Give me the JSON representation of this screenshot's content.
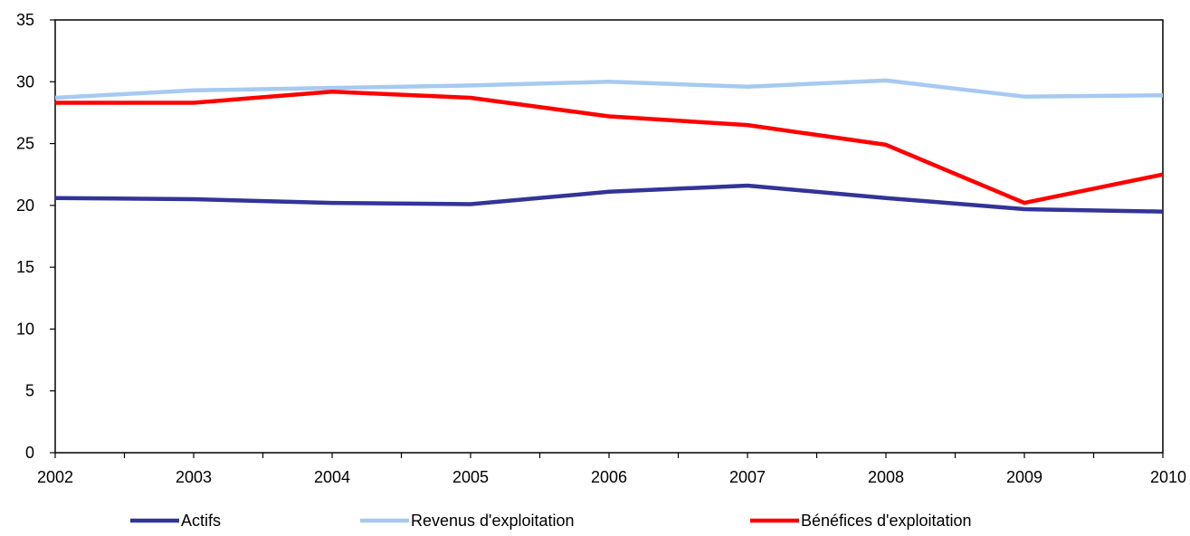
{
  "chart_data": {
    "type": "line",
    "x": [
      2002,
      2003,
      2004,
      2005,
      2006,
      2007,
      2008,
      2009,
      2010
    ],
    "x_tick_labels": [
      "2002",
      "2003",
      "2004",
      "2005",
      "2006",
      "2007",
      "2008",
      "2009",
      "2010"
    ],
    "y_tick_labels": [
      "0",
      "5",
      "10",
      "15",
      "20",
      "25",
      "30",
      "35"
    ],
    "ylim": [
      0,
      35
    ],
    "grid": false,
    "legend_position": "bottom",
    "series": [
      {
        "name": "Actifs",
        "color": "#333399",
        "values": [
          20.6,
          20.5,
          20.2,
          20.1,
          21.1,
          21.6,
          20.6,
          19.7,
          19.5
        ]
      },
      {
        "name": "Revenus d'exploitation",
        "color": "#A6CAF0",
        "values": [
          28.7,
          29.3,
          29.5,
          29.7,
          30.0,
          29.6,
          30.1,
          28.8,
          28.9
        ]
      },
      {
        "name": "Bénéfices d'exploitation",
        "color": "#FF0000",
        "values": [
          28.3,
          28.3,
          29.2,
          28.7,
          27.2,
          26.5,
          24.9,
          20.2,
          22.5
        ]
      }
    ]
  }
}
